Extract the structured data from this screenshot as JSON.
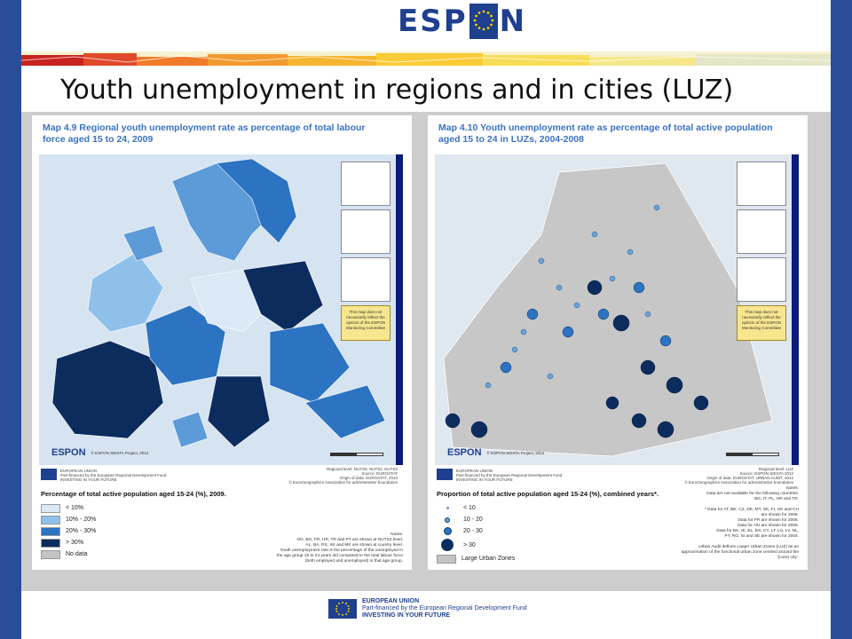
{
  "header": {
    "logo_left": "ESP",
    "logo_right": "N"
  },
  "slide": {
    "title": "Youth unemployment in regions and in cities (LUZ)"
  },
  "left_map": {
    "title_line1": "Map 4.9 Regional youth unemployment rate as percentage of total labour",
    "title_line2": "force aged 15 to 24, 2009",
    "espon_label": "ESPON",
    "credit": "© ESPON SIESTA Project, 2012",
    "disclaimer": "This map does not necessarily reflect the opinion of the ESPON Monitoring Committee",
    "eu_text_1": "EUROPEAN UNION",
    "eu_text_2": "Part-financed by the European Regional Development Fund",
    "eu_text_3": "INVESTING IN YOUR FUTURE",
    "source_1": "Regional level: NUTS0, NUTS2, NUTS3",
    "source_2": "Source: EUROSTAT",
    "source_3": "Origin of data: EUROSTAT, 2010",
    "source_4": "© EuroGeographics Association for administrative boundaries",
    "legend_title": "Percentage of total active population aged 15-24 (%), 2009.",
    "legend": [
      {
        "label": "< 10%",
        "color": "#dbe9f7"
      },
      {
        "label": "10% - 20%",
        "color": "#8ec0ea"
      },
      {
        "label": "20% - 30%",
        "color": "#2c73c2"
      },
      {
        "label": "> 30%",
        "color": "#0d2c5e"
      },
      {
        "label": "No data",
        "color": "#c4c4c4"
      }
    ],
    "notes": [
      "Notes:",
      "NO, BG, FR, HR, TR and PT are shown at NUTS2 level;",
      "AL, BA, RS, XK and MK are shown at country level.",
      "Youth unemployment rate is the percentage of the unemployed in",
      "the age group 15 to 24 years old compared to the total labour force",
      "(both employed and unemployed) in that age group."
    ]
  },
  "right_map": {
    "title_line1": "Map 4.10 Youth unemployment rate as percentage of total active population",
    "title_line2": "aged 15 to 24 in LUZs, 2004-2008",
    "espon_label": "ESPON",
    "credit": "© ESPON SIESTA Project, 2012",
    "disclaimer": "This map does not necessarily reflect the opinion of the ESPON Monitoring Committee",
    "eu_text_1": "EUROPEAN UNION",
    "eu_text_2": "Part-financed by the European Regional Development Fund",
    "eu_text_3": "INVESTING IN YOUR FUTURE",
    "source_1": "Regional level: LUZ",
    "source_2": "Source: ESPON SIESTA 2012",
    "source_3": "Origin of data: EUROSTAT, URBAN AUDIT, 2012",
    "source_4": "© EuroGeographics Association for administrative boundaries",
    "legend_title": "Proportion of total active population aged 15-24 (%), combined years*.",
    "legend": [
      {
        "label": "< 10"
      },
      {
        "label": "10 - 20"
      },
      {
        "label": "20 - 30"
      },
      {
        "label": "> 30"
      },
      {
        "label": "Large Urban Zones"
      }
    ],
    "notes": [
      "Notes:",
      "Data are not available for the following countries:",
      "BG, IT, PL, HR and TR.",
      "",
      "* Data for AT, BE, CZ, DE, MT, SK, FI, UK and CH",
      "are shown for 2008.",
      "Data for FR are shown for 2006.",
      "Data for HU are shown for 2005.",
      "Data for DK, IE, EL, ES, CY, LT, LU, LV, NL,",
      "PT, RO, SI and SE are shown for 2004.",
      "",
      "Urban Audit defines Larger Urban Zones (LUZ) as an",
      "approximation of the functional urban zone centred around the",
      "'(core) city'."
    ]
  },
  "footer": {
    "line1": "EUROPEAN UNION",
    "line2": "Part-financed by the European Regional Development Fund",
    "line3": "INVESTING IN YOUR FUTURE"
  }
}
